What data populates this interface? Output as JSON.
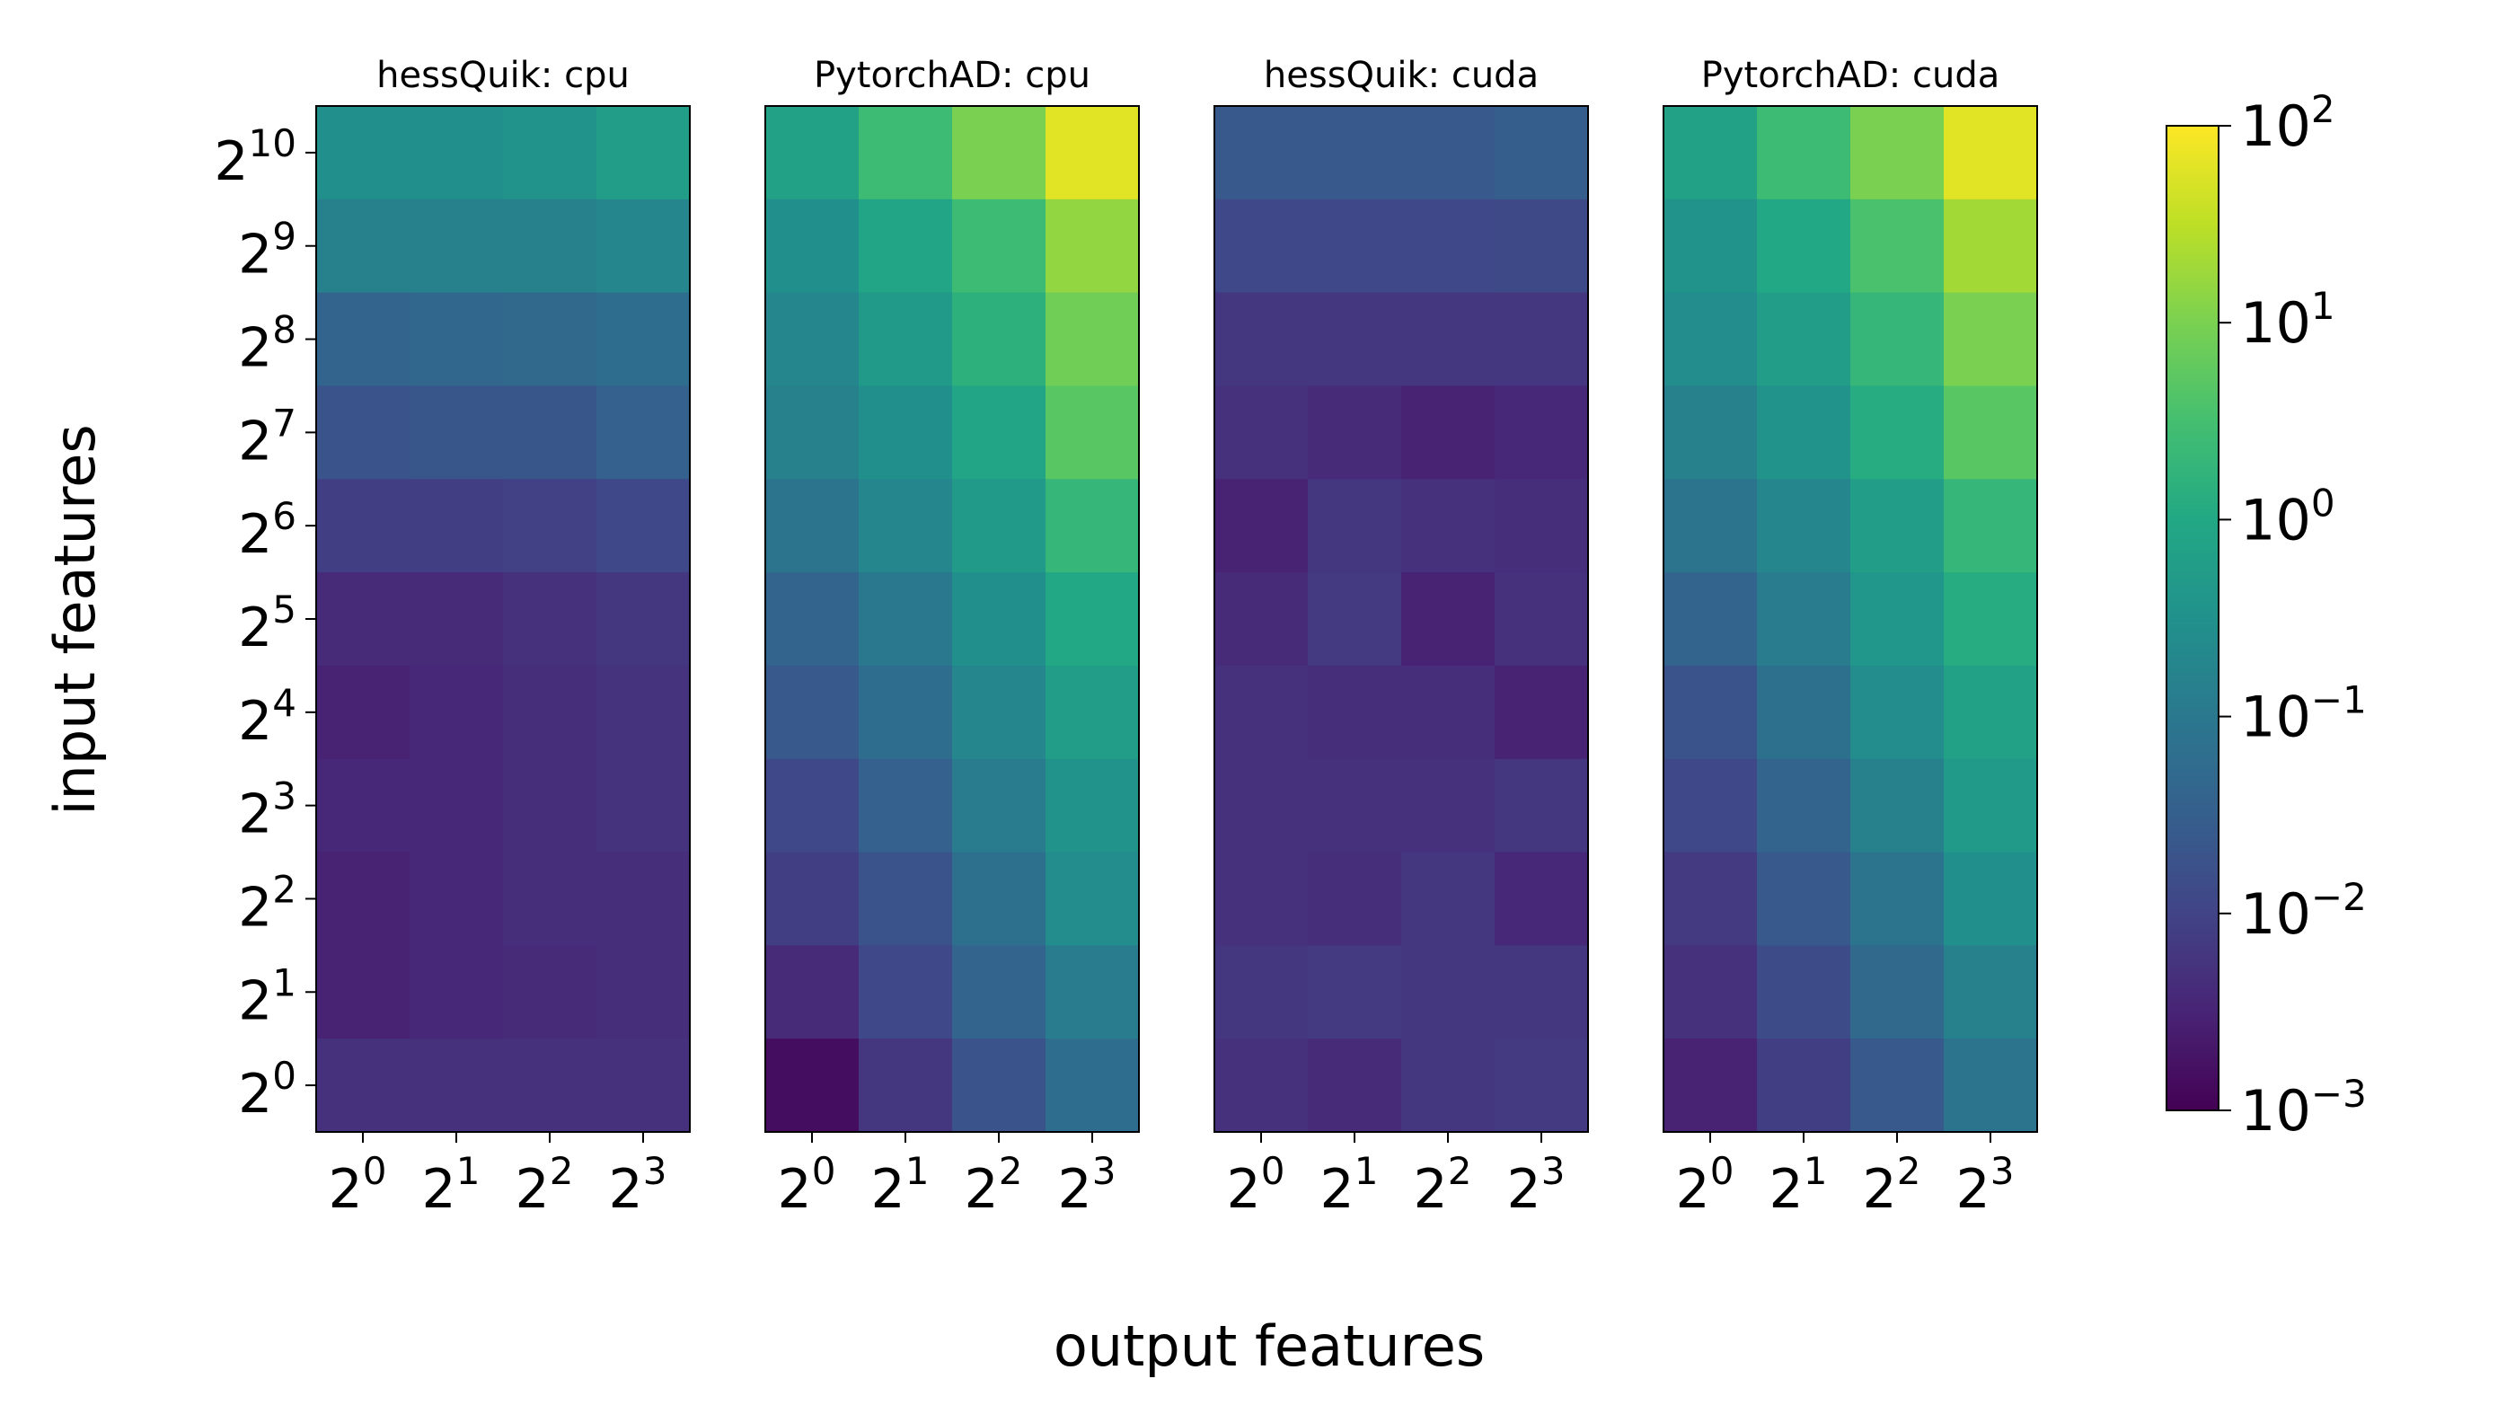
{
  "chart_data": {
    "type": "heatmap",
    "xlabel": "output features",
    "ylabel": "input features",
    "tick_base": "2",
    "x_tick_exponents": [
      "0",
      "1",
      "2",
      "3"
    ],
    "y_tick_exponents": [
      "0",
      "1",
      "2",
      "3",
      "4",
      "5",
      "6",
      "7",
      "8",
      "9",
      "10"
    ],
    "colormap": "viridis",
    "color_scale": "log",
    "color_range": [
      0.001,
      100
    ],
    "colorbar_ticks": [
      {
        "base": "10",
        "exp": "2",
        "value": 100
      },
      {
        "base": "10",
        "exp": "1",
        "value": 10
      },
      {
        "base": "10",
        "exp": "0",
        "value": 1
      },
      {
        "base": "10",
        "exp": "−1",
        "value": 0.1
      },
      {
        "base": "10",
        "exp": "−2",
        "value": 0.01
      },
      {
        "base": "10",
        "exp": "−3",
        "value": 0.001
      }
    ],
    "panels": [
      {
        "title": "hessQuik: cpu",
        "rows_top_to_bottom": [
          [
            0.3,
            0.3,
            0.35,
            0.6
          ],
          [
            0.15,
            0.15,
            0.15,
            0.2
          ],
          [
            0.04,
            0.045,
            0.05,
            0.06
          ],
          [
            0.02,
            0.022,
            0.022,
            0.035
          ],
          [
            0.008,
            0.008,
            0.009,
            0.012
          ],
          [
            0.004,
            0.004,
            0.005,
            0.006
          ],
          [
            0.003,
            0.0035,
            0.0045,
            0.0055
          ],
          [
            0.0035,
            0.0035,
            0.0045,
            0.0055
          ],
          [
            0.003,
            0.0035,
            0.0045,
            0.0045
          ],
          [
            0.003,
            0.0035,
            0.004,
            0.0045
          ],
          [
            0.005,
            0.005,
            0.005,
            0.005
          ]
        ]
      },
      {
        "title": "PytorchAD: cpu",
        "rows_top_to_bottom": [
          [
            0.7,
            2.5,
            10,
            60
          ],
          [
            0.3,
            0.8,
            2.5,
            15
          ],
          [
            0.2,
            0.5,
            1.5,
            8
          ],
          [
            0.15,
            0.3,
            0.8,
            5
          ],
          [
            0.08,
            0.2,
            0.5,
            2
          ],
          [
            0.04,
            0.1,
            0.3,
            1
          ],
          [
            0.025,
            0.06,
            0.2,
            0.6
          ],
          [
            0.012,
            0.035,
            0.12,
            0.35
          ],
          [
            0.008,
            0.02,
            0.07,
            0.25
          ],
          [
            0.004,
            0.012,
            0.04,
            0.12
          ],
          [
            0.0015,
            0.006,
            0.02,
            0.06
          ]
        ]
      },
      {
        "title": "hessQuik: cuda",
        "rows_top_to_bottom": [
          [
            0.025,
            0.025,
            0.025,
            0.03
          ],
          [
            0.012,
            0.012,
            0.012,
            0.013
          ],
          [
            0.006,
            0.006,
            0.006,
            0.006
          ],
          [
            0.005,
            0.004,
            0.003,
            0.0035
          ],
          [
            0.003,
            0.006,
            0.005,
            0.0045
          ],
          [
            0.004,
            0.007,
            0.003,
            0.005
          ],
          [
            0.005,
            0.0045,
            0.0045,
            0.003
          ],
          [
            0.005,
            0.005,
            0.005,
            0.006
          ],
          [
            0.005,
            0.0045,
            0.006,
            0.0035
          ],
          [
            0.006,
            0.007,
            0.006,
            0.006
          ],
          [
            0.005,
            0.004,
            0.006,
            0.007
          ]
        ]
      },
      {
        "title": "PytorchAD: cuda",
        "rows_top_to_bottom": [
          [
            0.7,
            2.5,
            10,
            60
          ],
          [
            0.35,
            1,
            3.5,
            20
          ],
          [
            0.25,
            0.6,
            2,
            10
          ],
          [
            0.15,
            0.35,
            1.2,
            5
          ],
          [
            0.08,
            0.2,
            0.6,
            2
          ],
          [
            0.04,
            0.12,
            0.4,
            1.2
          ],
          [
            0.02,
            0.07,
            0.25,
            0.7
          ],
          [
            0.012,
            0.04,
            0.15,
            0.5
          ],
          [
            0.007,
            0.025,
            0.08,
            0.3
          ],
          [
            0.005,
            0.014,
            0.05,
            0.15
          ],
          [
            0.003,
            0.008,
            0.025,
            0.08
          ]
        ]
      }
    ]
  }
}
